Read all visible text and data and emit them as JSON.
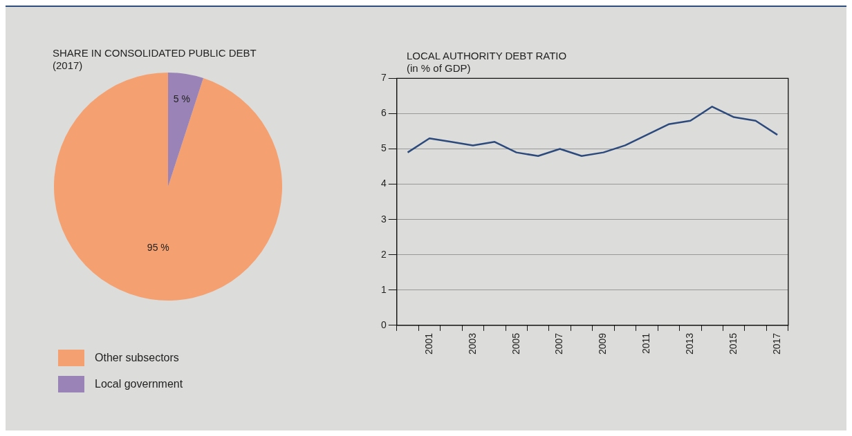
{
  "chart_data": [
    {
      "type": "pie",
      "title": "SHARE IN CONSOLIDATED PUBLIC DEBT",
      "subtitle": "(2017)",
      "categories": [
        "Other subsectors",
        "Local government"
      ],
      "values": [
        95,
        5
      ],
      "colors": [
        "#f5a070",
        "#9a83b6"
      ],
      "value_labels": [
        "95 %",
        "5 %"
      ],
      "legend": "bottom"
    },
    {
      "type": "line",
      "title": "LOCAL AUTHORITY DEBT RATIO",
      "subtitle": "(in % of GDP)",
      "categories": [
        null,
        "2001",
        null,
        "2003",
        null,
        "2005",
        null,
        "2007",
        null,
        "2009",
        null,
        "2011",
        null,
        "2013",
        null,
        "2015",
        null,
        "2017"
      ],
      "series": [
        {
          "color": "#2c4a7c",
          "values": [
            4.9,
            5.3,
            5.2,
            5.1,
            5.2,
            4.9,
            4.8,
            5.0,
            4.8,
            4.9,
            5.1,
            5.4,
            5.7,
            5.8,
            6.2,
            5.9,
            5.8,
            5.4
          ]
        }
      ],
      "ylim": [
        0,
        7
      ],
      "yticks": [
        0,
        1,
        2,
        3,
        4,
        5,
        6,
        7
      ],
      "grid": "y",
      "marker": "none",
      "line_style": "solid"
    }
  ]
}
